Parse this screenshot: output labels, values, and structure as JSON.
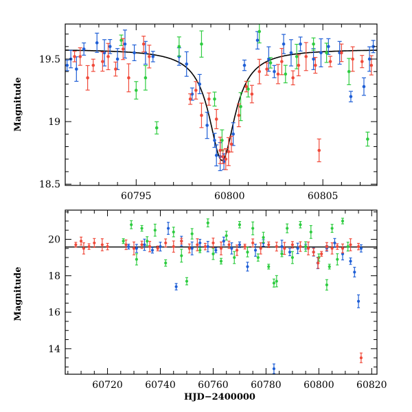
{
  "colors": {
    "blue": "#1f5fd6",
    "green": "#2ecc40",
    "red": "#f04a3a",
    "model": "#000000"
  },
  "chart_data": [
    {
      "type": "scatter",
      "ylabel": "Magnitude",
      "xlabel": "",
      "xlim": [
        60791.2,
        60807.9
      ],
      "ylim": [
        19.78,
        18.49
      ],
      "y_inverted": true,
      "xticks": [
        60795,
        60800,
        60805
      ],
      "yticks": [
        18.5,
        19,
        19.5
      ],
      "model_curve": {
        "peak_x": 60799.6,
        "peak_mag": 18.69,
        "baseline_mag": 19.58,
        "width": 0.85
      },
      "series": [
        {
          "color": "blue",
          "points": [
            [
              60791.3,
              19.45
            ],
            [
              60791.5,
              19.5
            ],
            [
              60791.8,
              19.42
            ],
            [
              60792.2,
              19.58
            ],
            [
              60792.9,
              19.63
            ],
            [
              60793.3,
              19.55
            ],
            [
              60793.6,
              19.6
            ],
            [
              60794.0,
              19.5
            ],
            [
              60794.4,
              19.62
            ],
            [
              60794.9,
              19.55
            ],
            [
              60795.5,
              19.55
            ],
            [
              60795.9,
              19.52
            ],
            [
              60797.3,
              19.52
            ],
            [
              60797.7,
              19.46
            ],
            [
              60798.0,
              19.22
            ],
            [
              60798.4,
              19.3
            ],
            [
              60798.8,
              18.97
            ],
            [
              60799.2,
              18.85
            ],
            [
              60799.3,
              18.73
            ],
            [
              60799.5,
              18.72
            ],
            [
              60799.7,
              18.68
            ],
            [
              60800.2,
              18.9
            ],
            [
              60800.8,
              19.45
            ],
            [
              60801.5,
              19.65
            ],
            [
              60802.1,
              19.5
            ],
            [
              60802.4,
              19.4
            ],
            [
              60802.9,
              19.62
            ],
            [
              60803.3,
              19.55
            ],
            [
              60803.8,
              19.62
            ],
            [
              60804.5,
              19.5
            ],
            [
              60804.9,
              19.55
            ],
            [
              60805.3,
              19.6
            ],
            [
              60805.9,
              19.55
            ],
            [
              60806.5,
              19.2
            ],
            [
              60807.2,
              19.28
            ],
            [
              60807.5,
              19.5
            ],
            [
              60807.7,
              19.6
            ]
          ]
        },
        {
          "color": "green",
          "points": [
            [
              60794.2,
              19.65
            ],
            [
              60795.0,
              19.25
            ],
            [
              60795.5,
              19.35
            ],
            [
              60796.1,
              18.95
            ],
            [
              60797.3,
              19.6
            ],
            [
              60798.5,
              19.62
            ],
            [
              60799.2,
              19.18
            ],
            [
              60799.6,
              18.85
            ],
            [
              60800.6,
              19.12
            ],
            [
              60801.0,
              19.26
            ],
            [
              60801.6,
              19.72
            ],
            [
              60802.2,
              19.47
            ],
            [
              60803.0,
              19.38
            ],
            [
              60803.6,
              19.52
            ],
            [
              60804.5,
              19.62
            ],
            [
              60805.2,
              19.55
            ],
            [
              60806.4,
              19.4
            ],
            [
              60807.4,
              18.86
            ]
          ]
        },
        {
          "color": "red",
          "points": [
            [
              60791.7,
              19.52
            ],
            [
              60792.0,
              19.52
            ],
            [
              60792.4,
              19.35
            ],
            [
              60792.7,
              19.45
            ],
            [
              60793.2,
              19.48
            ],
            [
              60793.5,
              19.52
            ],
            [
              60793.9,
              19.42
            ],
            [
              60794.3,
              19.58
            ],
            [
              60794.6,
              19.35
            ],
            [
              60795.4,
              19.62
            ],
            [
              60795.7,
              19.52
            ],
            [
              60797.9,
              19.18
            ],
            [
              60798.2,
              19.25
            ],
            [
              60798.5,
              19.05
            ],
            [
              60798.9,
              19.18
            ],
            [
              60799.3,
              19.02
            ],
            [
              60799.5,
              18.77
            ],
            [
              60799.65,
              18.72
            ],
            [
              60799.8,
              18.7
            ],
            [
              60799.95,
              18.76
            ],
            [
              60800.1,
              18.82
            ],
            [
              60800.5,
              19.05
            ],
            [
              60800.9,
              19.28
            ],
            [
              60801.2,
              19.22
            ],
            [
              60801.6,
              19.4
            ],
            [
              60802.0,
              19.42
            ],
            [
              60802.6,
              19.38
            ],
            [
              60802.8,
              19.48
            ],
            [
              60803.4,
              19.35
            ],
            [
              60803.7,
              19.45
            ],
            [
              60804.1,
              19.52
            ],
            [
              60804.6,
              19.45
            ],
            [
              60804.8,
              18.77
            ],
            [
              60805.4,
              19.48
            ],
            [
              60806.0,
              19.55
            ],
            [
              60806.6,
              19.5
            ],
            [
              60807.1,
              19.48
            ],
            [
              60807.6,
              19.45
            ]
          ]
        }
      ]
    },
    {
      "type": "scatter",
      "ylabel": "Magnitude",
      "xlabel": "HJD−2400000",
      "xlim": [
        60704,
        60822
      ],
      "ylim": [
        21.6,
        12.6
      ],
      "y_inverted": true,
      "xticks": [
        60720,
        60740,
        60760,
        60780,
        60800,
        60820
      ],
      "yticks": [
        14,
        16,
        18,
        20
      ],
      "baseline_mag": 19.58,
      "series": [
        {
          "color": "blue",
          "points": [
            [
              60728,
              19.6
            ],
            [
              60731,
              19.5
            ],
            [
              60734,
              19.7
            ],
            [
              60737,
              19.4
            ],
            [
              60740,
              19.6
            ],
            [
              60743,
              20.6
            ],
            [
              60746,
              17.4
            ],
            [
              60748,
              19.9
            ],
            [
              60752,
              19.5
            ],
            [
              60755,
              19.8
            ],
            [
              60758,
              19.6
            ],
            [
              60761,
              19.4
            ],
            [
              60764,
              19.9
            ],
            [
              60767,
              19.5
            ],
            [
              60770,
              19.7
            ],
            [
              60773,
              18.5
            ],
            [
              60776,
              19.4
            ],
            [
              60779,
              19.8
            ],
            [
              60783,
              12.9
            ],
            [
              60786,
              19.6
            ],
            [
              60789,
              19.3
            ],
            [
              60792,
              19.5
            ],
            [
              60795,
              19.6
            ],
            [
              60798,
              19.3
            ],
            [
              60799.6,
              18.7
            ],
            [
              60803,
              19.5
            ],
            [
              60806,
              19.8
            ],
            [
              60809,
              19.2
            ],
            [
              60812,
              18.8
            ],
            [
              60813.5,
              18.2
            ],
            [
              60815,
              16.6
            ],
            [
              60816,
              19.5
            ]
          ]
        },
        {
          "color": "green",
          "points": [
            [
              60726,
              19.9
            ],
            [
              60729,
              20.8
            ],
            [
              60731,
              18.9
            ],
            [
              60733,
              20.6
            ],
            [
              60735,
              19.9
            ],
            [
              60738,
              20.5
            ],
            [
              60742,
              18.7
            ],
            [
              60745,
              20.4
            ],
            [
              60748,
              19.1
            ],
            [
              60750,
              17.7
            ],
            [
              60752,
              20.3
            ],
            [
              60755,
              19.4
            ],
            [
              60758,
              20.9
            ],
            [
              60760,
              19.2
            ],
            [
              60763,
              18.8
            ],
            [
              60765,
              20.2
            ],
            [
              60768,
              19.0
            ],
            [
              60770,
              20.8
            ],
            [
              60773,
              19.3
            ],
            [
              60775,
              20.6
            ],
            [
              60777,
              19.0
            ],
            [
              60779,
              20.1
            ],
            [
              60781,
              18.5
            ],
            [
              60783,
              17.6
            ],
            [
              60784,
              17.7
            ],
            [
              60786,
              19.2
            ],
            [
              60788,
              20.6
            ],
            [
              60790,
              19.0
            ],
            [
              60793,
              20.8
            ],
            [
              60795,
              19.6
            ],
            [
              60797,
              20.4
            ],
            [
              60800,
              19.0
            ],
            [
              60803,
              17.5
            ],
            [
              60804,
              18.5
            ],
            [
              60805,
              20.6
            ],
            [
              60807,
              18.9
            ],
            [
              60809,
              21.0
            ],
            [
              60811,
              19.6
            ]
          ]
        },
        {
          "color": "red",
          "points": [
            [
              60708,
              19.7
            ],
            [
              60710,
              19.9
            ],
            [
              60711,
              19.5
            ],
            [
              60713,
              19.6
            ],
            [
              60715,
              19.8
            ],
            [
              60718,
              19.7
            ],
            [
              60720,
              19.6
            ],
            [
              60727,
              19.7
            ],
            [
              60730,
              19.5
            ],
            [
              60733,
              19.7
            ],
            [
              60736,
              19.6
            ],
            [
              60739,
              19.5
            ],
            [
              60742,
              19.8
            ],
            [
              60745,
              19.6
            ],
            [
              60748,
              19.9
            ],
            [
              60751,
              19.5
            ],
            [
              60754,
              19.7
            ],
            [
              60757,
              19.6
            ],
            [
              60760,
              19.8
            ],
            [
              60763,
              19.5
            ],
            [
              60766,
              19.7
            ],
            [
              60769,
              19.4
            ],
            [
              60772,
              19.6
            ],
            [
              60775,
              19.8
            ],
            [
              60778,
              19.5
            ],
            [
              60781,
              19.7
            ],
            [
              60784,
              19.6
            ],
            [
              60787,
              19.5
            ],
            [
              60790,
              19.7
            ],
            [
              60793,
              19.6
            ],
            [
              60796,
              19.5
            ],
            [
              60798,
              19.3
            ],
            [
              60799.7,
              18.7
            ],
            [
              60801,
              19.2
            ],
            [
              60803,
              19.6
            ],
            [
              60805,
              19.5
            ],
            [
              60807,
              19.6
            ],
            [
              60809,
              19.5
            ],
            [
              60812,
              19.7
            ],
            [
              60815,
              19.6
            ],
            [
              60816,
              13.5
            ]
          ]
        }
      ]
    }
  ]
}
